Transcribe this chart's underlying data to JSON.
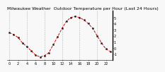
{
  "title": "Milwaukee Weather  Outdoor Temperature per Hour (Last 24 Hours)",
  "hours": [
    0,
    1,
    2,
    3,
    4,
    5,
    6,
    7,
    8,
    9,
    10,
    11,
    12,
    13,
    14,
    15,
    16,
    17,
    18,
    19,
    20,
    21,
    22,
    23
  ],
  "temps": [
    2.5,
    2.2,
    1.7,
    0.8,
    0.2,
    -0.5,
    -1.2,
    -1.5,
    -1.3,
    -0.8,
    0.5,
    1.8,
    3.2,
    4.4,
    5.0,
    5.2,
    5.0,
    4.6,
    4.0,
    3.2,
    2.0,
    0.8,
    -0.2,
    -0.6
  ],
  "line_color": "#dd0000",
  "marker_color": "#111111",
  "bg_color": "#f8f8f8",
  "grid_color": "#888888",
  "yticks": [
    5,
    4,
    3,
    2,
    1,
    0,
    -1
  ],
  "ytick_labels": [
    "5",
    "4",
    "3",
    "2",
    "1",
    "0",
    "-1"
  ],
  "ylim": [
    -2.0,
    6.2
  ],
  "xlim": [
    -0.5,
    23.5
  ],
  "title_fontsize": 4.5,
  "tick_fontsize": 3.5,
  "xtick_step": 2
}
